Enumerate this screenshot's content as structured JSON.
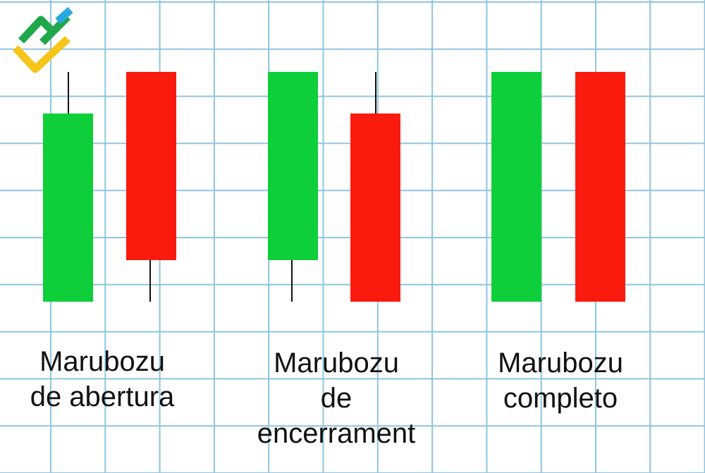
{
  "captions": [
    {
      "lines": [
        "Marubozu",
        "de abertura"
      ]
    },
    {
      "lines": [
        "Marubozu",
        "de",
        "encerrament"
      ]
    },
    {
      "lines": [
        "Marubozu",
        "completo"
      ]
    }
  ]
}
